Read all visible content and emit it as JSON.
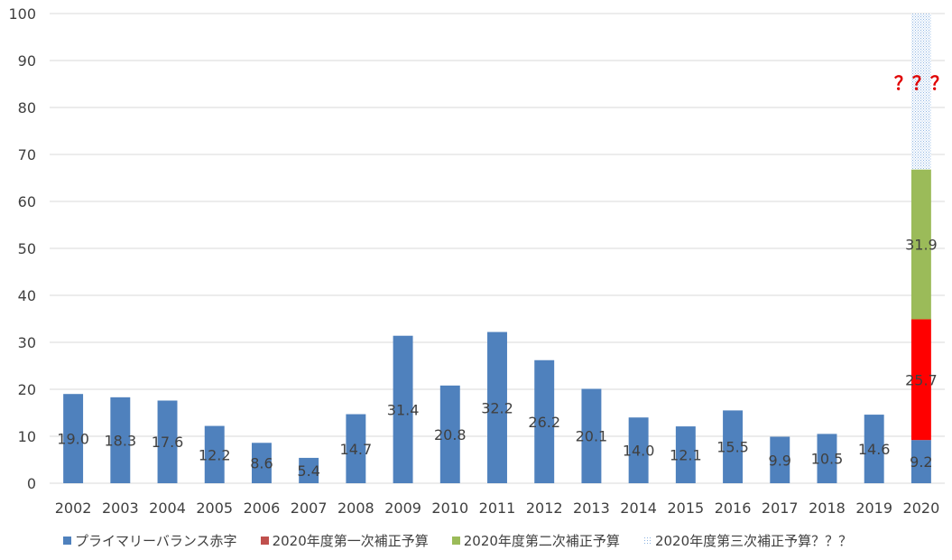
{
  "chart_data": {
    "type": "bar",
    "stacked": true,
    "categories": [
      "2002",
      "2003",
      "2004",
      "2005",
      "2006",
      "2007",
      "2008",
      "2009",
      "2010",
      "2011",
      "2012",
      "2013",
      "2014",
      "2015",
      "2016",
      "2017",
      "2018",
      "2019",
      "2020"
    ],
    "ylim": [
      0,
      100
    ],
    "yticks": [
      0,
      10,
      20,
      30,
      40,
      50,
      60,
      70,
      80,
      90,
      100
    ],
    "grid": true,
    "legend_position": "bottom",
    "series": [
      {
        "name": "プライマリーバランス赤字",
        "color": "#4F81BD",
        "values": [
          19.0,
          18.3,
          17.6,
          12.2,
          8.6,
          5.4,
          14.7,
          31.4,
          20.8,
          32.2,
          26.2,
          20.1,
          14.0,
          12.1,
          15.5,
          9.9,
          10.5,
          14.6,
          9.2
        ],
        "labels": [
          "19.0",
          "18.3",
          "17.6",
          "12.2",
          "8.6",
          "5.4",
          "14.7",
          "31.4",
          "20.8",
          "32.2",
          "26.2",
          "20.1",
          "14.0",
          "12.1",
          "15.5",
          "9.9",
          "10.5",
          "14.6",
          "9.2"
        ]
      },
      {
        "name": "2020年度第一次補正予算",
        "color": "#FF0000",
        "legend_color": "#C0504D",
        "values": [
          0,
          0,
          0,
          0,
          0,
          0,
          0,
          0,
          0,
          0,
          0,
          0,
          0,
          0,
          0,
          0,
          0,
          0,
          25.7
        ],
        "labels": [
          "",
          "",
          "",
          "",
          "",
          "",
          "",
          "",
          "",
          "",
          "",
          "",
          "",
          "",
          "",
          "",
          "",
          "",
          "25.7"
        ]
      },
      {
        "name": "2020年度第二次補正予算",
        "color": "#9BBB59",
        "values": [
          0,
          0,
          0,
          0,
          0,
          0,
          0,
          0,
          0,
          0,
          0,
          0,
          0,
          0,
          0,
          0,
          0,
          0,
          31.9
        ],
        "labels": [
          "",
          "",
          "",
          "",
          "",
          "",
          "",
          "",
          "",
          "",
          "",
          "",
          "",
          "",
          "",
          "",
          "",
          "",
          "31.9"
        ]
      },
      {
        "name": "2020年度第三次補正予算？？？",
        "color": "#8DB4E2",
        "pattern": "dotted",
        "values": [
          0,
          0,
          0,
          0,
          0,
          0,
          0,
          0,
          0,
          0,
          0,
          0,
          0,
          0,
          0,
          0,
          0,
          0,
          33.2
        ],
        "labels": [
          "",
          "",
          "",
          "",
          "",
          "",
          "",
          "",
          "",
          "",
          "",
          "",
          "",
          "",
          "",
          "",
          "",
          "",
          ""
        ]
      }
    ],
    "annotations": [
      {
        "text": "？？？",
        "color": "#E00000",
        "category": "2020",
        "y": 85
      }
    ]
  }
}
